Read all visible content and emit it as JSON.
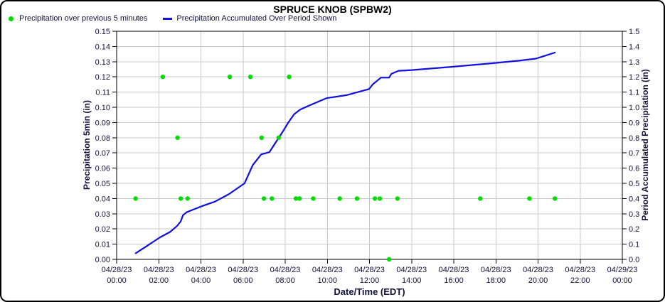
{
  "colors": {
    "scatter_green": "#00dc00",
    "line_blue": "#1010e0",
    "grid": "#c9c9c9",
    "axis_line": "#000000",
    "tick_text": "#10103a",
    "title_text": "#000000",
    "background": "#ffffff"
  },
  "chart_data": {
    "type": "line",
    "title": "SPRUCE KNOB (SPBW2)",
    "xlabel": "Date/Time (EDT)",
    "ylabel_left": "Precipitation 5min (in)",
    "ylabel_right": "Period Accumulated Precipitation (in)",
    "grid": true,
    "legend_position": "top-left",
    "x_axis": {
      "start": "04/28/23 00:00",
      "end": "04/29/23 00:00",
      "span_hours": 24,
      "tick_interval_hours": 2,
      "ticks": [
        {
          "date": "04/28/23",
          "time": "00:00"
        },
        {
          "date": "04/28/23",
          "time": "02:00"
        },
        {
          "date": "04/28/23",
          "time": "04:00"
        },
        {
          "date": "04/28/23",
          "time": "06:00"
        },
        {
          "date": "04/28/23",
          "time": "08:00"
        },
        {
          "date": "04/28/23",
          "time": "10:00"
        },
        {
          "date": "04/28/23",
          "time": "12:00"
        },
        {
          "date": "04/28/23",
          "time": "14:00"
        },
        {
          "date": "04/28/23",
          "time": "16:00"
        },
        {
          "date": "04/28/23",
          "time": "18:00"
        },
        {
          "date": "04/28/23",
          "time": "20:00"
        },
        {
          "date": "04/28/23",
          "time": "22:00"
        },
        {
          "date": "04/29/23",
          "time": "00:00"
        }
      ]
    },
    "y_axis_left": {
      "min": 0.0,
      "max": 0.15,
      "step": 0.01,
      "decimals": 2
    },
    "y_axis_right": {
      "min": 0.0,
      "max": 1.5,
      "step": 0.1,
      "decimals": 1
    },
    "series": [
      {
        "name": "Precipitation over previous 5 minutes",
        "type": "scatter",
        "marker": "dot",
        "color": "#00dc00",
        "y_axis": "left",
        "points_hours_value": [
          [
            0.9,
            0.04
          ],
          [
            2.19,
            0.12
          ],
          [
            2.89,
            0.08
          ],
          [
            3.04,
            0.04
          ],
          [
            3.37,
            0.04
          ],
          [
            5.37,
            0.12
          ],
          [
            6.35,
            0.12
          ],
          [
            6.88,
            0.08
          ],
          [
            6.99,
            0.04
          ],
          [
            7.37,
            0.04
          ],
          [
            7.69,
            0.08
          ],
          [
            8.19,
            0.12
          ],
          [
            8.51,
            0.04
          ],
          [
            8.68,
            0.04
          ],
          [
            9.33,
            0.04
          ],
          [
            10.59,
            0.04
          ],
          [
            11.41,
            0.04
          ],
          [
            12.26,
            0.04
          ],
          [
            12.49,
            0.04
          ],
          [
            12.93,
            0.0
          ],
          [
            13.33,
            0.04
          ],
          [
            17.26,
            0.04
          ],
          [
            19.59,
            0.04
          ],
          [
            20.8,
            0.04
          ]
        ]
      },
      {
        "name": "Precipitation Accumulated Over Period Shown",
        "type": "line",
        "color": "#1010e0",
        "y_axis": "right",
        "points_hours_value": [
          [
            0.9,
            0.04
          ],
          [
            1.46,
            0.09
          ],
          [
            2.06,
            0.145
          ],
          [
            2.53,
            0.18
          ],
          [
            2.87,
            0.22
          ],
          [
            3.04,
            0.25
          ],
          [
            3.15,
            0.29
          ],
          [
            3.32,
            0.31
          ],
          [
            3.6,
            0.325
          ],
          [
            4.05,
            0.35
          ],
          [
            4.67,
            0.38
          ],
          [
            5.34,
            0.43
          ],
          [
            6.07,
            0.5
          ],
          [
            6.46,
            0.62
          ],
          [
            6.86,
            0.69
          ],
          [
            7.25,
            0.705
          ],
          [
            7.65,
            0.79
          ],
          [
            7.93,
            0.85
          ],
          [
            8.15,
            0.9
          ],
          [
            8.43,
            0.955
          ],
          [
            8.71,
            0.985
          ],
          [
            9.11,
            1.01
          ],
          [
            9.95,
            1.06
          ],
          [
            10.91,
            1.08
          ],
          [
            11.98,
            1.12
          ],
          [
            12.15,
            1.15
          ],
          [
            12.54,
            1.195
          ],
          [
            12.93,
            1.195
          ],
          [
            13.04,
            1.22
          ],
          [
            13.38,
            1.24
          ],
          [
            14.0,
            1.245
          ],
          [
            15.97,
            1.267
          ],
          [
            17.88,
            1.29
          ],
          [
            19.17,
            1.308
          ],
          [
            19.9,
            1.32
          ],
          [
            20.8,
            1.36
          ]
        ]
      }
    ]
  }
}
